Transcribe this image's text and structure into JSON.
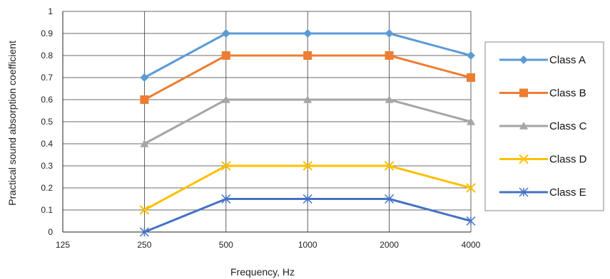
{
  "chart_data": {
    "type": "line",
    "title": "",
    "xlabel": "Frequency, Hz",
    "ylabel": "Practical sound absorption coefficient",
    "categories": [
      "125",
      "250",
      "500",
      "1000",
      "2000",
      "4000"
    ],
    "ylim": [
      0,
      1
    ],
    "yticks": [
      "0",
      "0.1",
      "0.2",
      "0.3",
      "0.4",
      "0.5",
      "0.6",
      "0.7",
      "0.8",
      "0.9",
      "1"
    ],
    "grid": true,
    "legend_position": "right",
    "series": [
      {
        "name": "Class A",
        "color": "#5B9BD5",
        "marker": "diamond",
        "values": [
          null,
          0.7,
          0.9,
          0.9,
          0.9,
          0.8
        ]
      },
      {
        "name": "Class B",
        "color": "#ED7D31",
        "marker": "square",
        "values": [
          null,
          0.6,
          0.8,
          0.8,
          0.8,
          0.7
        ]
      },
      {
        "name": "Class C",
        "color": "#A5A5A5",
        "marker": "triangle",
        "values": [
          null,
          0.4,
          0.6,
          0.6,
          0.6,
          0.5
        ]
      },
      {
        "name": "Class D",
        "color": "#FFC000",
        "marker": "x",
        "values": [
          null,
          0.1,
          0.3,
          0.3,
          0.3,
          0.2
        ]
      },
      {
        "name": "Class E",
        "color": "#4472C4",
        "marker": "star",
        "values": [
          null,
          0.0,
          0.15,
          0.15,
          0.15,
          0.05
        ]
      }
    ]
  }
}
